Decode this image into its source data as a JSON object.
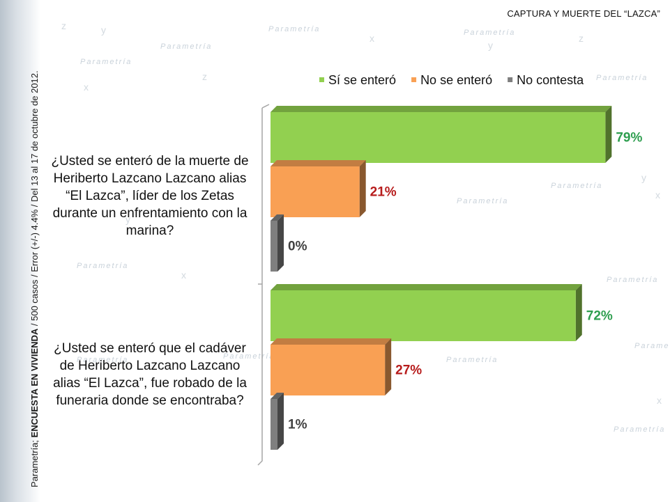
{
  "header": {
    "title": "CAPTURA Y MUERTE DEL “LAZCA”"
  },
  "source": {
    "prefix": "Parametría; ",
    "bold": "ENCUESTA EN VIVIENDA",
    "suffix": " / 500 casos / Error (+/-) 4.4% / Del 13 al 17 de octubre de 2012."
  },
  "watermark": "Parametría",
  "chart_data": {
    "type": "bar",
    "orientation": "horizontal",
    "categories": [
      "¿Usted se enteró de la muerte de Heriberto Lazcano Lazcano alias “El Lazca”, líder de los Zetas durante un enfrentamiento con la marina?",
      "¿Usted se enteró que el cadáver de Heriberto Lazcano Lazcano alias “El Lazca”, fue robado de la funeraria donde se encontraba?"
    ],
    "series": [
      {
        "name": "Sí se enteró",
        "values": [
          79,
          72
        ],
        "labels": [
          "79%",
          "72%"
        ],
        "color": "#92d050",
        "label_color": "#2e9e4f"
      },
      {
        "name": "No se enteró",
        "values": [
          21,
          27
        ],
        "labels": [
          "21%",
          "27%"
        ],
        "color": "#f9a054",
        "label_color": "#b71c1c"
      },
      {
        "name": "No contesta",
        "values": [
          0,
          1
        ],
        "labels": [
          "0%",
          "1%"
        ],
        "color": "#7f7f7f",
        "label_color": "#404040"
      }
    ],
    "legend": "top",
    "grid": false,
    "xlim": [
      0,
      100
    ]
  }
}
